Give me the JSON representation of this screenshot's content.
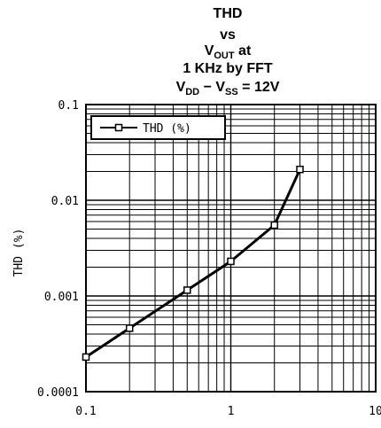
{
  "chart_data": {
    "type": "line",
    "title_lines": [
      {
        "parts": [
          {
            "text": "THD"
          }
        ]
      },
      {
        "parts": [
          {
            "text": "vs"
          }
        ]
      },
      {
        "parts": [
          {
            "text": "V"
          },
          {
            "text": "OUT",
            "sub": true
          },
          {
            "text": " at"
          }
        ]
      },
      {
        "parts": [
          {
            "text": "1 KHz by FFT"
          }
        ]
      },
      {
        "parts": [
          {
            "text": "V"
          },
          {
            "text": "DD",
            "sub": true
          },
          {
            "text": " − V"
          },
          {
            "text": "SS",
            "sub": true
          },
          {
            "text": " = 12V"
          }
        ]
      }
    ],
    "ylabel": "THD (%)",
    "xlabel": "",
    "x_scale": "log",
    "y_scale": "log",
    "xlim": [
      0.1,
      10
    ],
    "ylim": [
      0.0001,
      0.1
    ],
    "x_ticks": [
      {
        "value": 0.1,
        "label": "0.1"
      },
      {
        "value": 1,
        "label": "1"
      },
      {
        "value": 10,
        "label": "10"
      }
    ],
    "y_ticks": [
      {
        "value": 0.1,
        "label": "0.1"
      },
      {
        "value": 0.01,
        "label": "0.01"
      },
      {
        "value": 0.001,
        "label": "0.001"
      },
      {
        "value": 0.0001,
        "label": "0.0001"
      }
    ],
    "grid": true,
    "legend_position": "top-left",
    "series": [
      {
        "name": "THD (%)",
        "marker": "square",
        "color": "#000000",
        "x": [
          0.1,
          0.2,
          0.5,
          1,
          2,
          3
        ],
        "y": [
          0.00023,
          0.00046,
          0.00115,
          0.0023,
          0.0055,
          0.021
        ]
      }
    ]
  }
}
